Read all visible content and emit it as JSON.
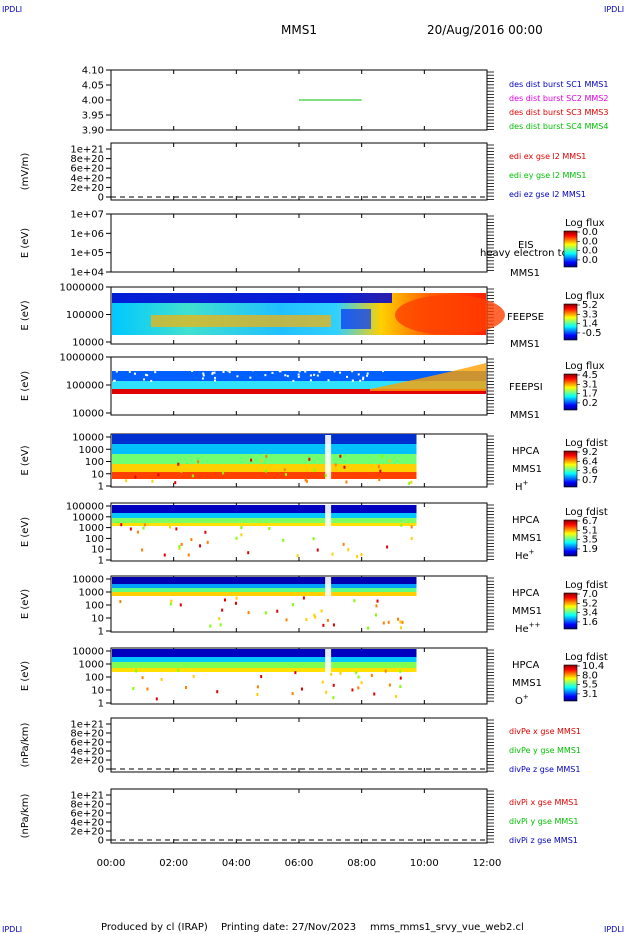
{
  "header": {
    "corner_tl": "IPDLI",
    "corner_tr": "IPDLI",
    "corner_bl": "IPDLI",
    "corner_br": "IPDLI",
    "mission": "MMS1",
    "date": "20/Aug/2016 00:00"
  },
  "footer": {
    "produced_by": "Produced by cl (IRAP)",
    "printing_date": "Printing date: 27/Nov/2023",
    "script": "mms_mms1_srvy_vue_web2.cl"
  },
  "colors": {
    "red": "#e00000",
    "green": "#00c000",
    "blue": "#0000c0",
    "magenta": "#e000e0"
  },
  "chart_data": [
    {
      "type": "line",
      "panel": "des dist burst",
      "x_range": [
        "00:00",
        "12:00"
      ],
      "ylim": [
        3.9,
        4.1
      ],
      "y_ticks": [
        "4.10",
        "4.05",
        "4.00",
        "3.95",
        "3.90"
      ],
      "series": [
        {
          "name": "des dist burst SC1 MMS1",
          "color": "#0000c0"
        },
        {
          "name": "des dist burst SC2 MMS2",
          "color": "#e000e0"
        },
        {
          "name": "des dist burst SC3 MMS3",
          "color": "#e00000"
        },
        {
          "name": "des dist burst SC4 MMS4",
          "color": "#00c000",
          "segments": [
            {
              "x": [
                "06:00",
                "08:00"
              ],
              "y": 4.0
            }
          ]
        }
      ]
    },
    {
      "type": "line",
      "panel": "edi e gse",
      "ylabel": "(mV/m)",
      "y_ticks": [
        "1e+21",
        "8e+20",
        "6e+20",
        "4e+20",
        "2e+20",
        "0"
      ],
      "series": [
        {
          "name": "edi ex gse l2 MMS1",
          "color": "#e00000"
        },
        {
          "name": "edi ey gse l2 MMS1",
          "color": "#00c000"
        },
        {
          "name": "edi ez gse l2 MMS1",
          "color": "#0000c0"
        }
      ]
    },
    {
      "type": "heatmap",
      "panel": "EIS",
      "ylabel": "E (eV)",
      "y_ticks": [
        "1e+07",
        "1e+06",
        "1e+05",
        "1e+04"
      ],
      "labels": [
        "EIS",
        "MMS1"
      ],
      "overlay_text": "heavy electron tof",
      "colorbar": {
        "title": "Log flux",
        "ticks": [
          "0.0",
          "0.0",
          "0.0",
          "0.0"
        ]
      }
    },
    {
      "type": "heatmap",
      "panel": "FEEPSE",
      "ylabel": "E (eV)",
      "y_ticks": [
        "1000000",
        "100000",
        "10000"
      ],
      "labels": [
        "FEEPSE",
        "MMS1"
      ],
      "colorbar": {
        "title": "Log flux",
        "ticks": [
          "5.2",
          "3.3",
          "1.4",
          "-0.5"
        ]
      }
    },
    {
      "type": "heatmap",
      "panel": "FEEPSI",
      "ylabel": "E (eV)",
      "y_ticks": [
        "1000000",
        "100000",
        "10000"
      ],
      "labels": [
        "FEEPSI",
        "MMS1"
      ],
      "colorbar": {
        "title": "Log flux",
        "ticks": [
          "4.5",
          "3.1",
          "1.7",
          "0.2"
        ]
      }
    },
    {
      "type": "heatmap",
      "panel": "HPCA H+",
      "ylabel": "E (eV)",
      "y_ticks": [
        "10000",
        "1000",
        "100",
        "10",
        "1"
      ],
      "labels": [
        "HPCA",
        "MMS1"
      ],
      "species": "H",
      "charge": "+",
      "colorbar": {
        "title": "Log fdist",
        "ticks": [
          "9.2",
          "6.4",
          "3.6",
          "0.7"
        ]
      }
    },
    {
      "type": "heatmap",
      "panel": "HPCA He+",
      "ylabel": "E (eV)",
      "y_ticks": [
        "100000",
        "10000",
        "1000",
        "100",
        "10",
        "1"
      ],
      "labels": [
        "HPCA",
        "MMS1"
      ],
      "species": "He",
      "charge": "+",
      "colorbar": {
        "title": "Log fdist",
        "ticks": [
          "6.7",
          "5.1",
          "3.5",
          "1.9"
        ]
      }
    },
    {
      "type": "heatmap",
      "panel": "HPCA He++",
      "ylabel": "E (eV)",
      "y_ticks": [
        "10000",
        "1000",
        "100",
        "10",
        "1"
      ],
      "labels": [
        "HPCA",
        "MMS1"
      ],
      "species": "He",
      "charge": "++",
      "colorbar": {
        "title": "Log fdist",
        "ticks": [
          "7.0",
          "5.2",
          "3.4",
          "1.6"
        ]
      }
    },
    {
      "type": "heatmap",
      "panel": "HPCA O+",
      "ylabel": "E (eV)",
      "y_ticks": [
        "10000",
        "1000",
        "100",
        "10",
        "1"
      ],
      "labels": [
        "HPCA",
        "MMS1"
      ],
      "species": "O",
      "charge": "+",
      "colorbar": {
        "title": "Log fdist",
        "ticks": [
          "10.4",
          "8.0",
          "5.5",
          "3.1"
        ]
      }
    },
    {
      "type": "line",
      "panel": "divPe",
      "ylabel": "(nPa/km)",
      "y_ticks": [
        "1e+21",
        "8e+20",
        "6e+20",
        "4e+20",
        "2e+20",
        "0"
      ],
      "series": [
        {
          "name": "divPe x gse MMS1",
          "color": "#e00000"
        },
        {
          "name": "divPe y gse MMS1",
          "color": "#00c000"
        },
        {
          "name": "divPe z gse MMS1",
          "color": "#0000c0"
        }
      ]
    },
    {
      "type": "line",
      "panel": "divPi",
      "ylabel": "(nPa/km)",
      "y_ticks": [
        "1e+21",
        "8e+20",
        "6e+20",
        "4e+20",
        "2e+20",
        "0"
      ],
      "series": [
        {
          "name": "divPi x gse MMS1",
          "color": "#e00000"
        },
        {
          "name": "divPi y gse MMS1",
          "color": "#00c000"
        },
        {
          "name": "divPi z gse MMS1",
          "color": "#0000c0"
        }
      ]
    }
  ],
  "x_axis": {
    "ticks": [
      "00:00",
      "02:00",
      "04:00",
      "06:00",
      "08:00",
      "10:00",
      "12:00"
    ]
  }
}
